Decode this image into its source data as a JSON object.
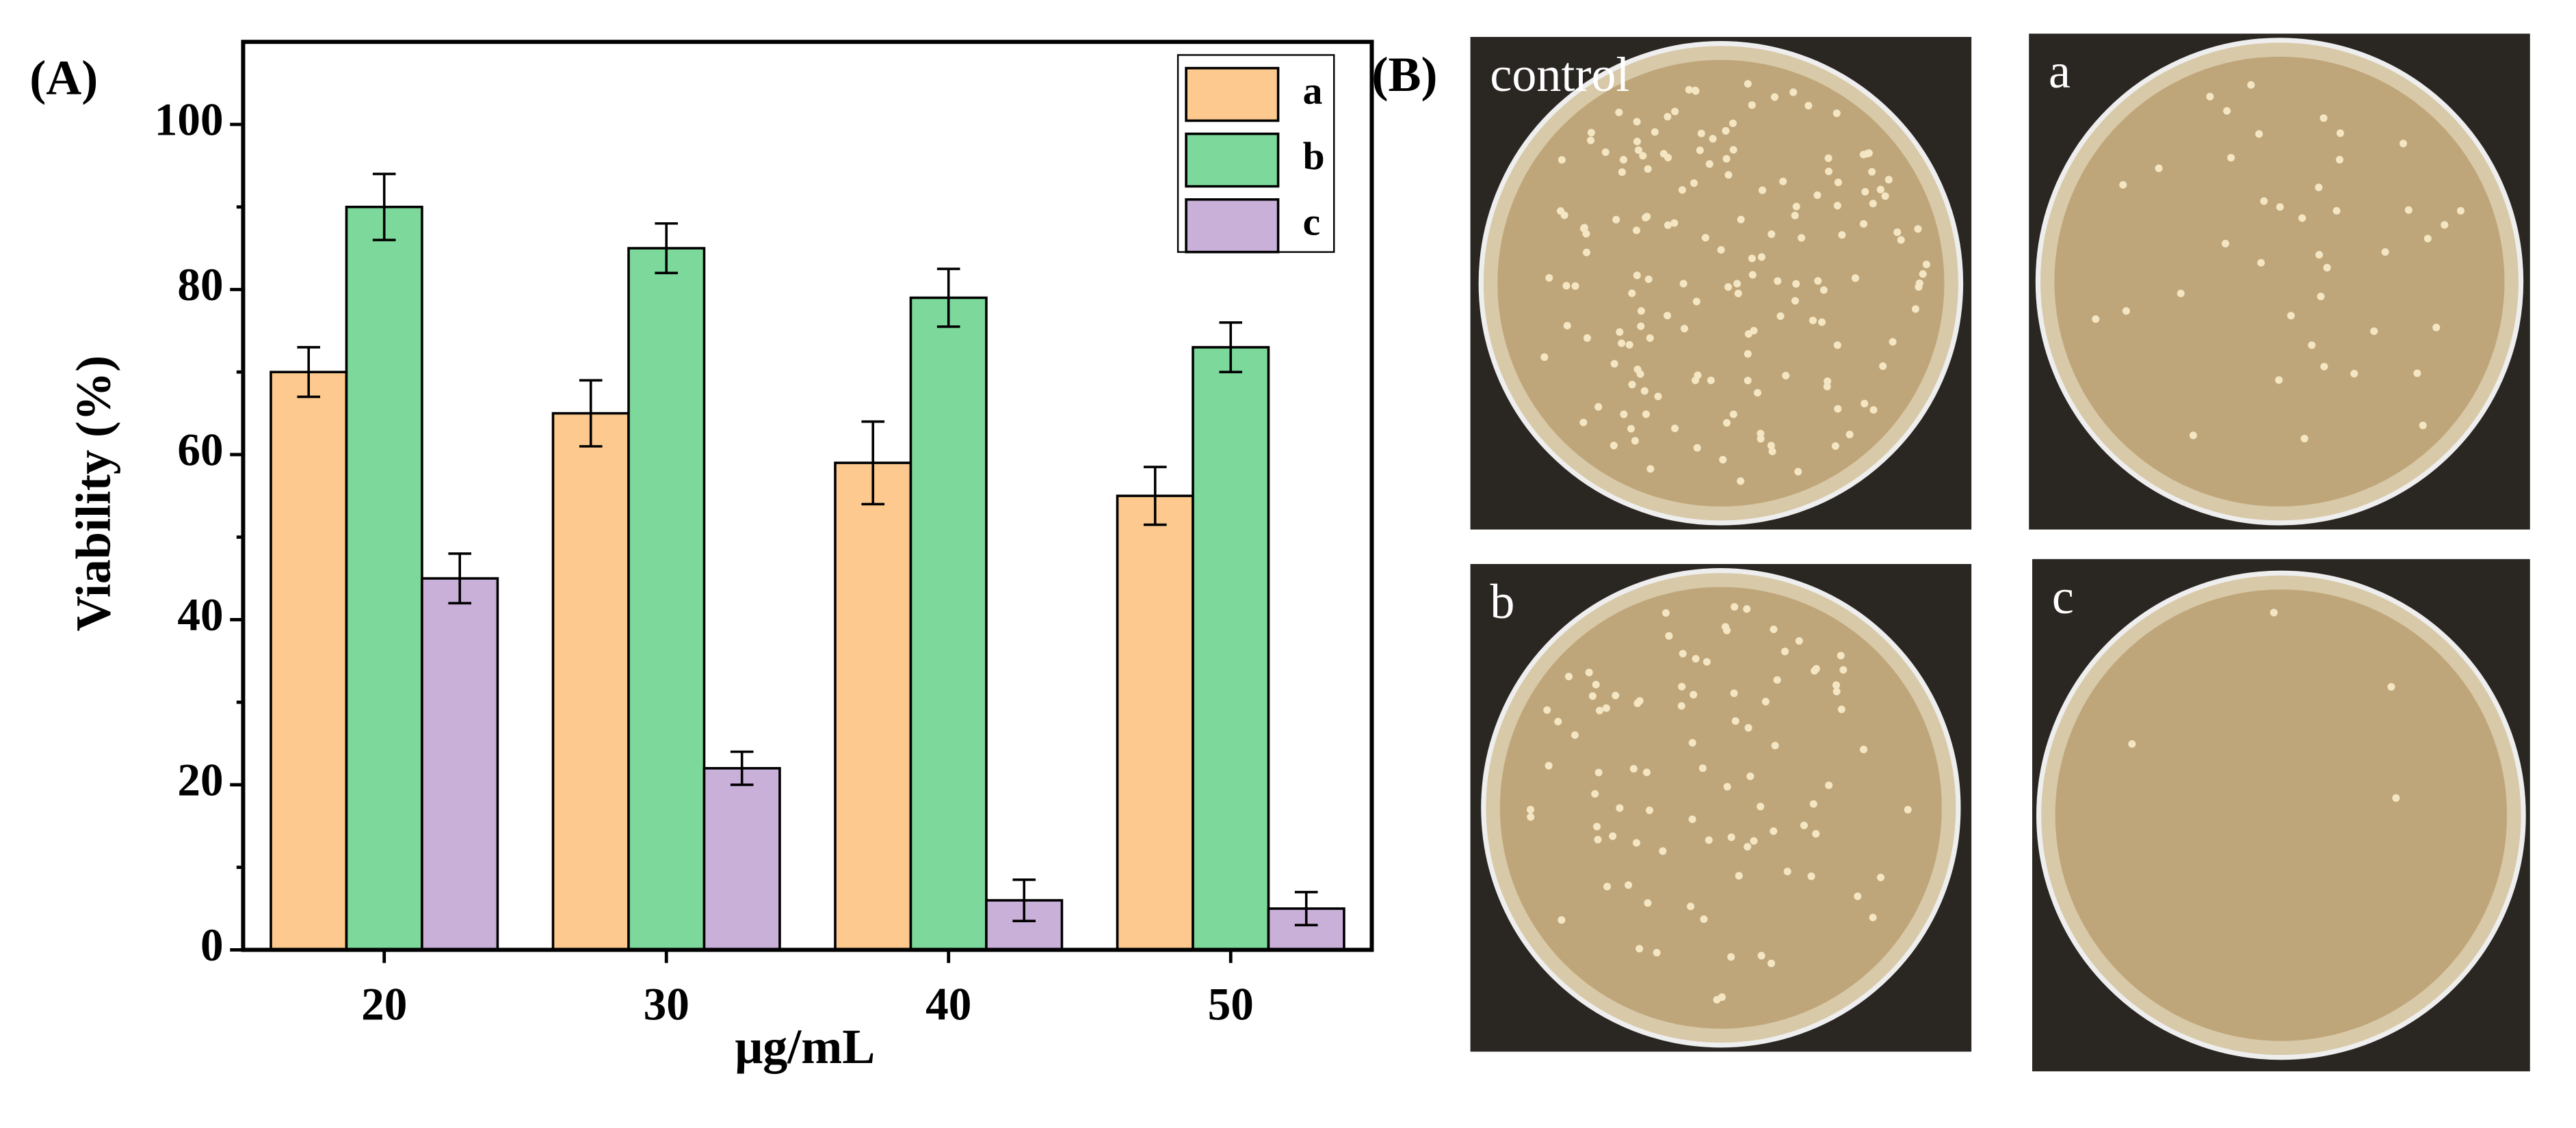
{
  "chart_data": {
    "type": "bar",
    "panel_label": "(A)",
    "x_label": "μg/mL",
    "y_label": "Viability (%)",
    "categories": [
      "20",
      "30",
      "40",
      "50"
    ],
    "series": [
      {
        "name": "a",
        "color": "#fdc98e",
        "values": [
          70,
          65,
          59,
          55
        ],
        "errors": [
          3,
          4,
          5,
          3.5
        ]
      },
      {
        "name": "b",
        "color": "#7dd89b",
        "values": [
          90,
          85,
          79,
          73
        ],
        "errors": [
          4,
          3,
          3.5,
          3
        ]
      },
      {
        "name": "c",
        "color": "#c9b0d9",
        "values": [
          45,
          22,
          6,
          5
        ],
        "errors": [
          3,
          2,
          2.5,
          2
        ]
      }
    ],
    "ylim": [
      0,
      110
    ],
    "yticks": [
      0,
      20,
      40,
      60,
      80,
      100
    ],
    "legend": "upper right"
  },
  "photos": {
    "panel_label": "(B)",
    "plates": [
      "control",
      "a",
      "b",
      "c"
    ]
  }
}
